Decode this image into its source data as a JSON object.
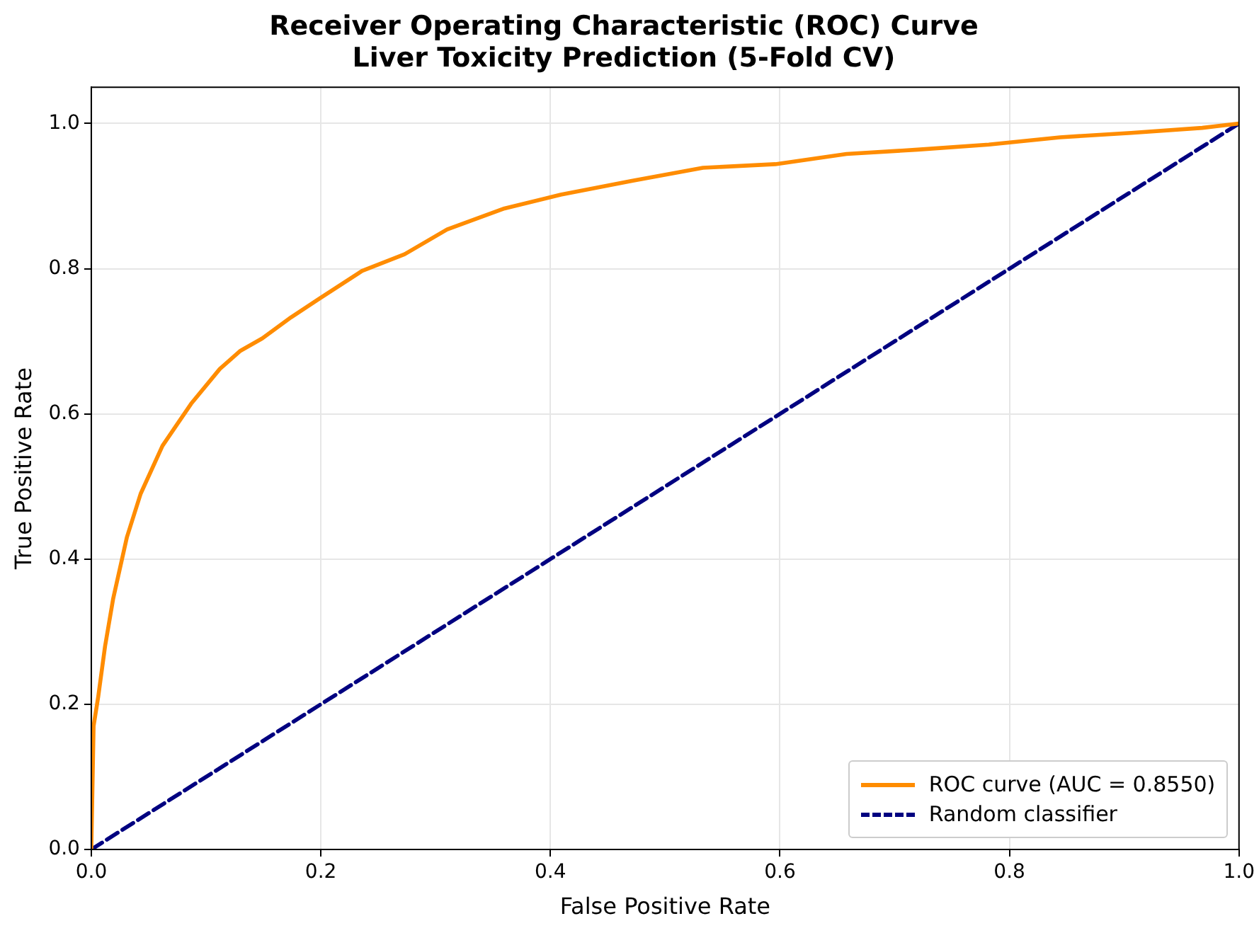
{
  "chart_data": {
    "type": "line",
    "title": "Receiver Operating Characteristic (ROC) Curve",
    "subtitle": "Liver Toxicity Prediction (5-Fold CV)",
    "xlabel": "False Positive Rate",
    "ylabel": "True Positive Rate",
    "xlim": [
      0,
      1
    ],
    "ylim": [
      0,
      1.05
    ],
    "xticks": [
      {
        "value": 0,
        "label": "0.0"
      },
      {
        "value": 0.2,
        "label": "0.2"
      },
      {
        "value": 0.4,
        "label": "0.4"
      },
      {
        "value": 0.6,
        "label": "0.6"
      },
      {
        "value": 0.8,
        "label": "0.8"
      },
      {
        "value": 1,
        "label": "1.0"
      }
    ],
    "yticks": [
      {
        "value": 0,
        "label": "0.0"
      },
      {
        "value": 0.2,
        "label": "0.2"
      },
      {
        "value": 0.4,
        "label": "0.4"
      },
      {
        "value": 0.6,
        "label": "0.6"
      },
      {
        "value": 0.8,
        "label": "0.8"
      },
      {
        "value": 1,
        "label": "1.0"
      }
    ],
    "grid": true,
    "legend": "bottom right",
    "marker": "none",
    "series": [
      {
        "name": "ROC curve (AUC = 0.8550)",
        "color": "#ff8c00",
        "line_style": "solid",
        "x": [
          0,
          0.002,
          0.006,
          0.012,
          0.019,
          0.031,
          0.043,
          0.062,
          0.087,
          0.112,
          0.13,
          0.149,
          0.174,
          0.198,
          0.236,
          0.273,
          0.31,
          0.36,
          0.409,
          0.471,
          0.533,
          0.596,
          0.658,
          0.72,
          0.782,
          0.844,
          0.906,
          0.968,
          1
        ],
        "values": [
          0,
          0.17,
          0.21,
          0.28,
          0.345,
          0.43,
          0.49,
          0.556,
          0.614,
          0.662,
          0.687,
          0.704,
          0.733,
          0.758,
          0.797,
          0.82,
          0.854,
          0.883,
          0.902,
          0.921,
          0.939,
          0.944,
          0.958,
          0.964,
          0.971,
          0.981,
          0.987,
          0.994,
          1
        ]
      },
      {
        "name": "Random classifier",
        "color": "#000080",
        "line_style": "dashed",
        "x": [
          0,
          1
        ],
        "values": [
          0,
          1
        ]
      }
    ]
  }
}
